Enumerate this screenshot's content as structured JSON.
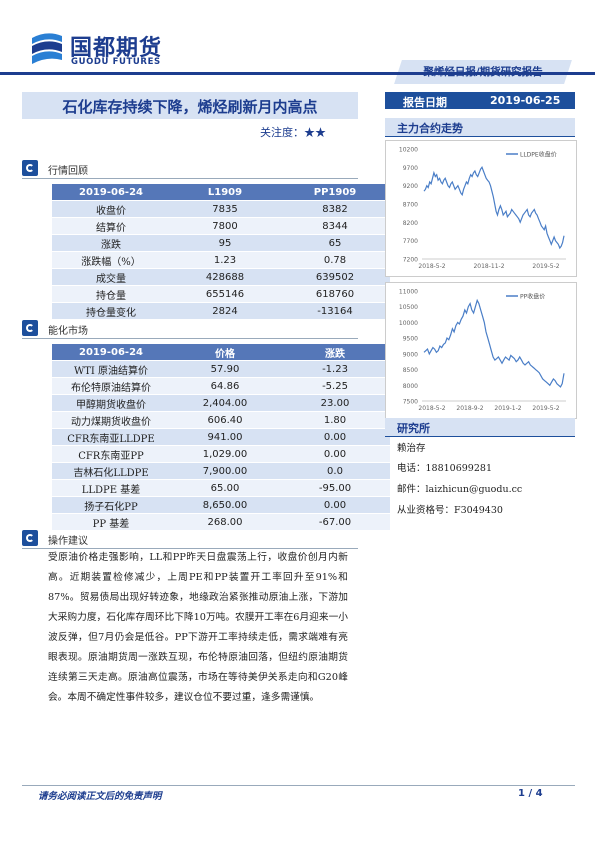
{
  "header": {
    "brand_cn": "国都期货",
    "brand_en": "GUODU FUTURES",
    "report_type": "聚烯烃日报/期货研究报告",
    "title": "石化库存持续下降，烯烃刷新月内高点",
    "focus_label": "关注度：★★",
    "date_label": "报告日期",
    "date_value": "2019-06-25"
  },
  "review": {
    "section_title": "行情回顾",
    "headers": [
      "2019-06-24",
      "L1909",
      "PP1909"
    ],
    "rows": [
      [
        "收盘价",
        "7835",
        "8382"
      ],
      [
        "结算价",
        "7800",
        "8344"
      ],
      [
        "涨跌",
        "95",
        "65"
      ],
      [
        "涨跌幅（%）",
        "1.23",
        "0.78"
      ],
      [
        "成交量",
        "428688",
        "639502"
      ],
      [
        "持仓量",
        "655146",
        "618760"
      ],
      [
        "持仓量变化",
        "2824",
        "-13164"
      ]
    ]
  },
  "market": {
    "section_title": "能化市场",
    "headers": [
      "2019-06-24",
      "价格",
      "涨跌"
    ],
    "rows": [
      [
        "WTI 原油结算价",
        "57.90",
        "-1.23"
      ],
      [
        "布伦特原油结算价",
        "64.86",
        "-5.25"
      ],
      [
        "甲醇期货收盘价",
        "2,404.00",
        "23.00"
      ],
      [
        "动力煤期货收盘价",
        "606.40",
        "1.80"
      ],
      [
        "CFR东南亚LLDPE",
        "941.00",
        "0.00"
      ],
      [
        "CFR东南亚PP",
        "1,029.00",
        "0.00"
      ],
      [
        "吉林石化LLDPE",
        "7,900.00",
        "0.0"
      ],
      [
        "LLDPE 基差",
        "65.00",
        "-95.00"
      ],
      [
        "扬子石化PP",
        "8,650.00",
        "0.00"
      ],
      [
        "PP 基差",
        "268.00",
        "-67.00"
      ]
    ]
  },
  "operation": {
    "section_title": "操作建议",
    "text": "受原油价格走强影响，LL和PP昨天日盘震荡上行，收盘价创月内新高。近期装置检修减少，上周PE和PP装置开工率回升至91%和87%。贸易债局出现好转迹象，地缘政治紧张推动原油上涨，下游加大采购力度，石化库存周环比下降10万吨。农膜开工率在6月迎来一小波反弹，但7月仍会是低谷。PP下游开工率持续走低，需求端难有亮眼表现。原油期货周一涨跌互现，布伦特原油回落，但纽约原油期货连续第三天走高。原油高位震荡，市场在等待美伊关系走向和G20峰会。本周不确定性事件较多，建议仓位不要过重，逢多需谨慎。"
  },
  "right": {
    "contract_trend_title": "主力合约走势",
    "research_title": "研究所",
    "researcher": "赖治存",
    "phone": "电话：18810699281",
    "email": "邮件：laizhicun@guodu.cc",
    "license": "从业资格号：F3049430"
  },
  "footer": {
    "disclaimer": "请务必阅读正文后的免责声明",
    "page": "1 / 4"
  },
  "chart_data": [
    {
      "type": "line",
      "legend": "LLDPE收盘价",
      "legend_position": "top-right",
      "x_ticks": [
        "2018-5-2",
        "2018-11-2",
        "2019-5-2"
      ],
      "y_ticks": [
        7200,
        7700,
        8200,
        8700,
        9200,
        9700,
        10200
      ],
      "ylim": [
        7200,
        10200
      ],
      "color": "#4a7ec7",
      "values": [
        9050,
        9100,
        9200,
        9150,
        9300,
        9250,
        9400,
        9550,
        9450,
        9500,
        9350,
        9400,
        9300,
        9250,
        9350,
        9400,
        9300,
        9200,
        9150,
        9250,
        9300,
        9200,
        9100,
        9150,
        9200,
        9100,
        9000,
        8950,
        9100,
        9200,
        9300,
        9250,
        9400,
        9500,
        9450,
        9550,
        9600,
        9500,
        9450,
        9550,
        9650,
        9700,
        9600,
        9500,
        9400,
        9350,
        9300,
        9200,
        9050,
        8900,
        8700,
        8500,
        8400,
        8550,
        8650,
        8550,
        8400,
        8450,
        8500,
        8350,
        8400,
        8450,
        8550,
        8500,
        8450,
        8400,
        8350,
        8300,
        8200,
        8300,
        8400,
        8450,
        8500,
        8550,
        8400,
        8350,
        8450,
        8500,
        8550,
        8450,
        8400,
        8300,
        8200,
        8100,
        8050,
        8000,
        8100,
        7900,
        7800,
        7700,
        7600,
        7700,
        7800,
        7700,
        7650,
        7600,
        7500,
        7550,
        7650,
        7835
      ]
    },
    {
      "type": "line",
      "legend": "PP收盘价",
      "legend_position": "top-right",
      "x_ticks": [
        "2018-5-2",
        "2018-9-2",
        "2019-1-2",
        "2019-5-2"
      ],
      "y_ticks": [
        7500,
        8000,
        8500,
        9000,
        9500,
        10000,
        10500,
        11000
      ],
      "ylim": [
        7500,
        11000
      ],
      "color": "#4a7ec7",
      "values": [
        9050,
        9100,
        9150,
        9000,
        9100,
        9200,
        9150,
        9050,
        9100,
        9250,
        9200,
        9300,
        9350,
        9500,
        9450,
        9600,
        9800,
        9700,
        9900,
        10000,
        9950,
        10100,
        10200,
        10400,
        10300,
        10500,
        10600,
        10400,
        10300,
        10500,
        10700,
        10600,
        10400,
        10200,
        10000,
        9700,
        9500,
        9300,
        9100,
        8900,
        8800,
        8850,
        8900,
        8800,
        8700,
        8800,
        8900,
        8850,
        8800,
        8950,
        8900,
        8850,
        8750,
        8800,
        8900,
        8800,
        8700,
        8650,
        8700,
        8750,
        8650,
        8600,
        8550,
        8500,
        8450,
        8400,
        8300,
        8200,
        8150,
        8100,
        8050,
        8000,
        8100,
        8200,
        8150,
        8050,
        8000,
        7950,
        8050,
        8382
      ]
    }
  ]
}
